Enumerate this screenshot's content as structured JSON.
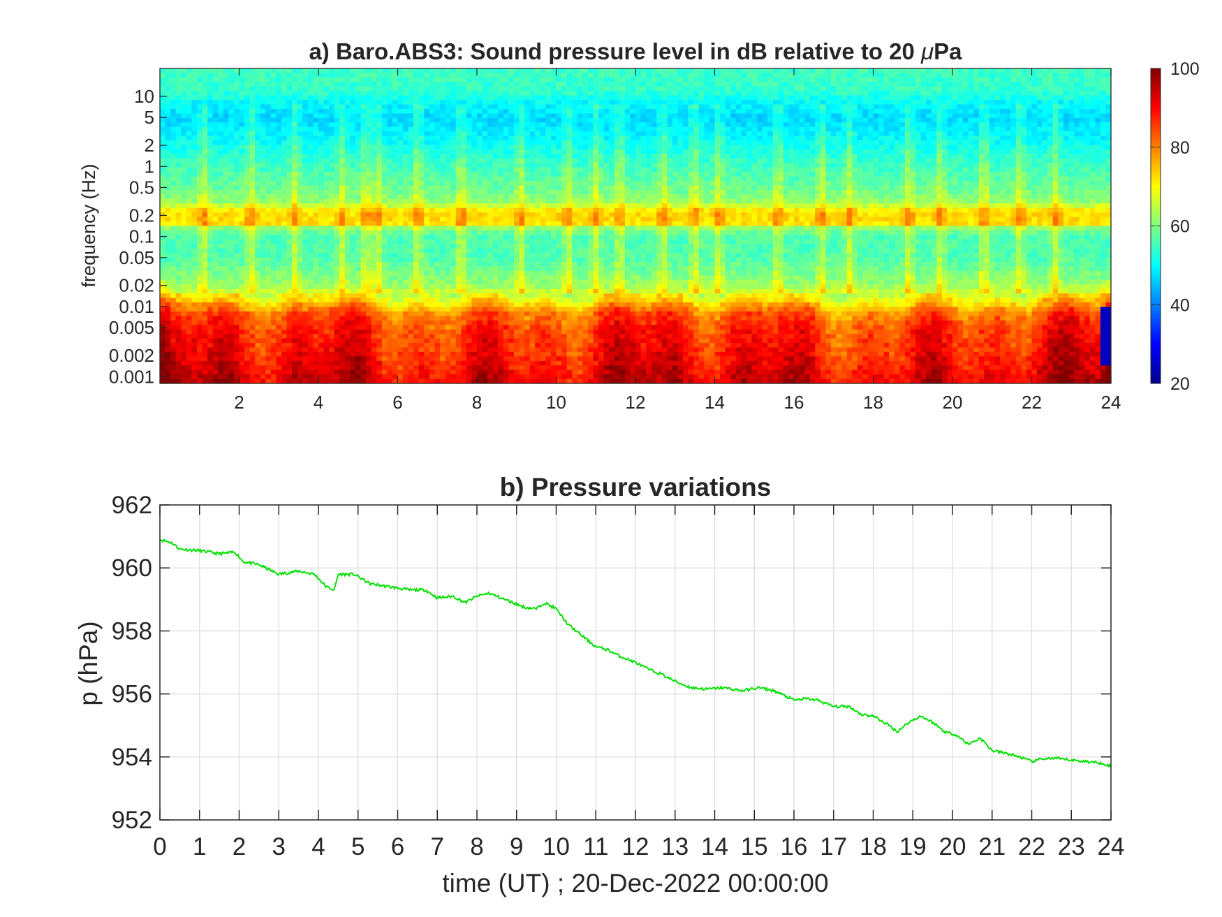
{
  "chart_data": [
    {
      "type": "heatmap",
      "title_text": "a) Baro.ABS3: Sound pressure level in dB relative to 20 ",
      "title_mu": "μ",
      "title_unit": "Pa",
      "xlabel": "",
      "ylabel": "frequency (Hz)",
      "xlim": [
        0,
        24
      ],
      "x_ticks": [
        "2",
        "4",
        "6",
        "8",
        "10",
        "12",
        "14",
        "16",
        "18",
        "20",
        "22",
        "24"
      ],
      "y_scale": "log",
      "ylim": [
        0.0008,
        25
      ],
      "y_ticks": [
        "0.001",
        "0.002",
        "0.005",
        "0.01",
        "0.02",
        "0.05",
        "0.1",
        "0.2",
        "0.5",
        "1",
        "2",
        "5",
        "10"
      ],
      "y_tick_values": [
        0.001,
        0.002,
        0.005,
        0.01,
        0.02,
        0.05,
        0.1,
        0.2,
        0.5,
        1,
        2,
        5,
        10
      ],
      "colormap": "jet",
      "clim": [
        20,
        100
      ],
      "colorbar_ticks": [
        "20",
        "40",
        "60",
        "80",
        "100"
      ],
      "colorbar_tick_values": [
        20,
        40,
        60,
        80,
        100
      ],
      "level_profile": {
        "frequency_hz": [
          0.0008,
          0.001,
          0.002,
          0.005,
          0.008,
          0.012,
          0.02,
          0.05,
          0.1,
          0.13,
          0.15,
          0.2,
          0.25,
          0.3,
          0.5,
          1,
          2,
          5,
          8,
          12,
          25
        ],
        "level_db": [
          93,
          92,
          89,
          86,
          82,
          72,
          62,
          56,
          56,
          60,
          72,
          73,
          70,
          62,
          58,
          55,
          51,
          47,
          50,
          54,
          55
        ]
      },
      "broadband_bursts_hour": [
        1.1,
        2.3,
        3.4,
        4.6,
        5.2,
        5.5,
        6.5,
        7.6,
        9.1,
        10.3,
        11.0,
        11.6,
        12.7,
        13.5,
        14.1,
        15.6,
        16.7,
        17.4,
        18.9,
        19.7,
        20.8,
        21.7,
        22.6
      ],
      "grid": false
    },
    {
      "type": "line",
      "title": "b) Pressure variations",
      "xlabel": "time (UT) ; 20-Dec-2022 00:00:00",
      "ylabel": "p (hPa)",
      "xlim": [
        0,
        24
      ],
      "ylim": [
        952,
        962
      ],
      "x_ticks": [
        "0",
        "1",
        "2",
        "3",
        "4",
        "5",
        "6",
        "7",
        "8",
        "9",
        "10",
        "11",
        "12",
        "13",
        "14",
        "15",
        "16",
        "17",
        "18",
        "19",
        "20",
        "21",
        "22",
        "23",
        "24"
      ],
      "y_ticks": [
        "952",
        "954",
        "956",
        "958",
        "960",
        "962"
      ],
      "y_tick_values": [
        952,
        954,
        956,
        958,
        960,
        962
      ],
      "grid": true,
      "series": [
        {
          "color": "#00e000",
          "x": [
            0,
            0.3,
            0.5,
            1.0,
            1.5,
            1.9,
            2.1,
            2.5,
            3.0,
            3.5,
            3.9,
            4.2,
            4.4,
            4.5,
            4.9,
            5.3,
            5.8,
            6.3,
            6.7,
            7.0,
            7.4,
            7.7,
            8.0,
            8.3,
            8.7,
            9.2,
            9.5,
            9.7,
            10.0,
            10.3,
            10.6,
            11.0,
            11.3,
            11.6,
            12.0,
            12.3,
            12.7,
            13.0,
            13.4,
            13.8,
            14.2,
            14.7,
            15.1,
            15.5,
            16.0,
            16.3,
            16.6,
            17.0,
            17.4,
            17.7,
            18.0,
            18.4,
            18.6,
            18.9,
            19.2,
            19.5,
            19.8,
            20.1,
            20.4,
            20.7,
            21.0,
            21.4,
            21.7,
            22.0,
            22.3,
            22.6,
            23.0,
            23.4,
            23.8,
            24.0
          ],
          "y": [
            960.9,
            960.8,
            960.6,
            960.55,
            960.45,
            960.5,
            960.2,
            960.1,
            959.8,
            959.9,
            959.8,
            959.4,
            959.3,
            959.8,
            959.8,
            959.5,
            959.4,
            959.3,
            959.3,
            959.05,
            959.1,
            958.9,
            959.1,
            959.2,
            959.0,
            958.75,
            958.7,
            958.9,
            958.7,
            958.2,
            957.9,
            957.5,
            957.4,
            957.2,
            957.0,
            956.8,
            956.6,
            956.4,
            956.2,
            956.15,
            956.2,
            956.1,
            956.2,
            956.1,
            955.8,
            955.85,
            955.8,
            955.6,
            955.6,
            955.35,
            955.3,
            955.0,
            954.8,
            955.1,
            955.3,
            955.1,
            954.8,
            954.7,
            954.4,
            954.6,
            954.2,
            954.1,
            954.0,
            953.85,
            953.95,
            953.95,
            953.9,
            953.85,
            953.8,
            953.7
          ]
        }
      ]
    }
  ]
}
